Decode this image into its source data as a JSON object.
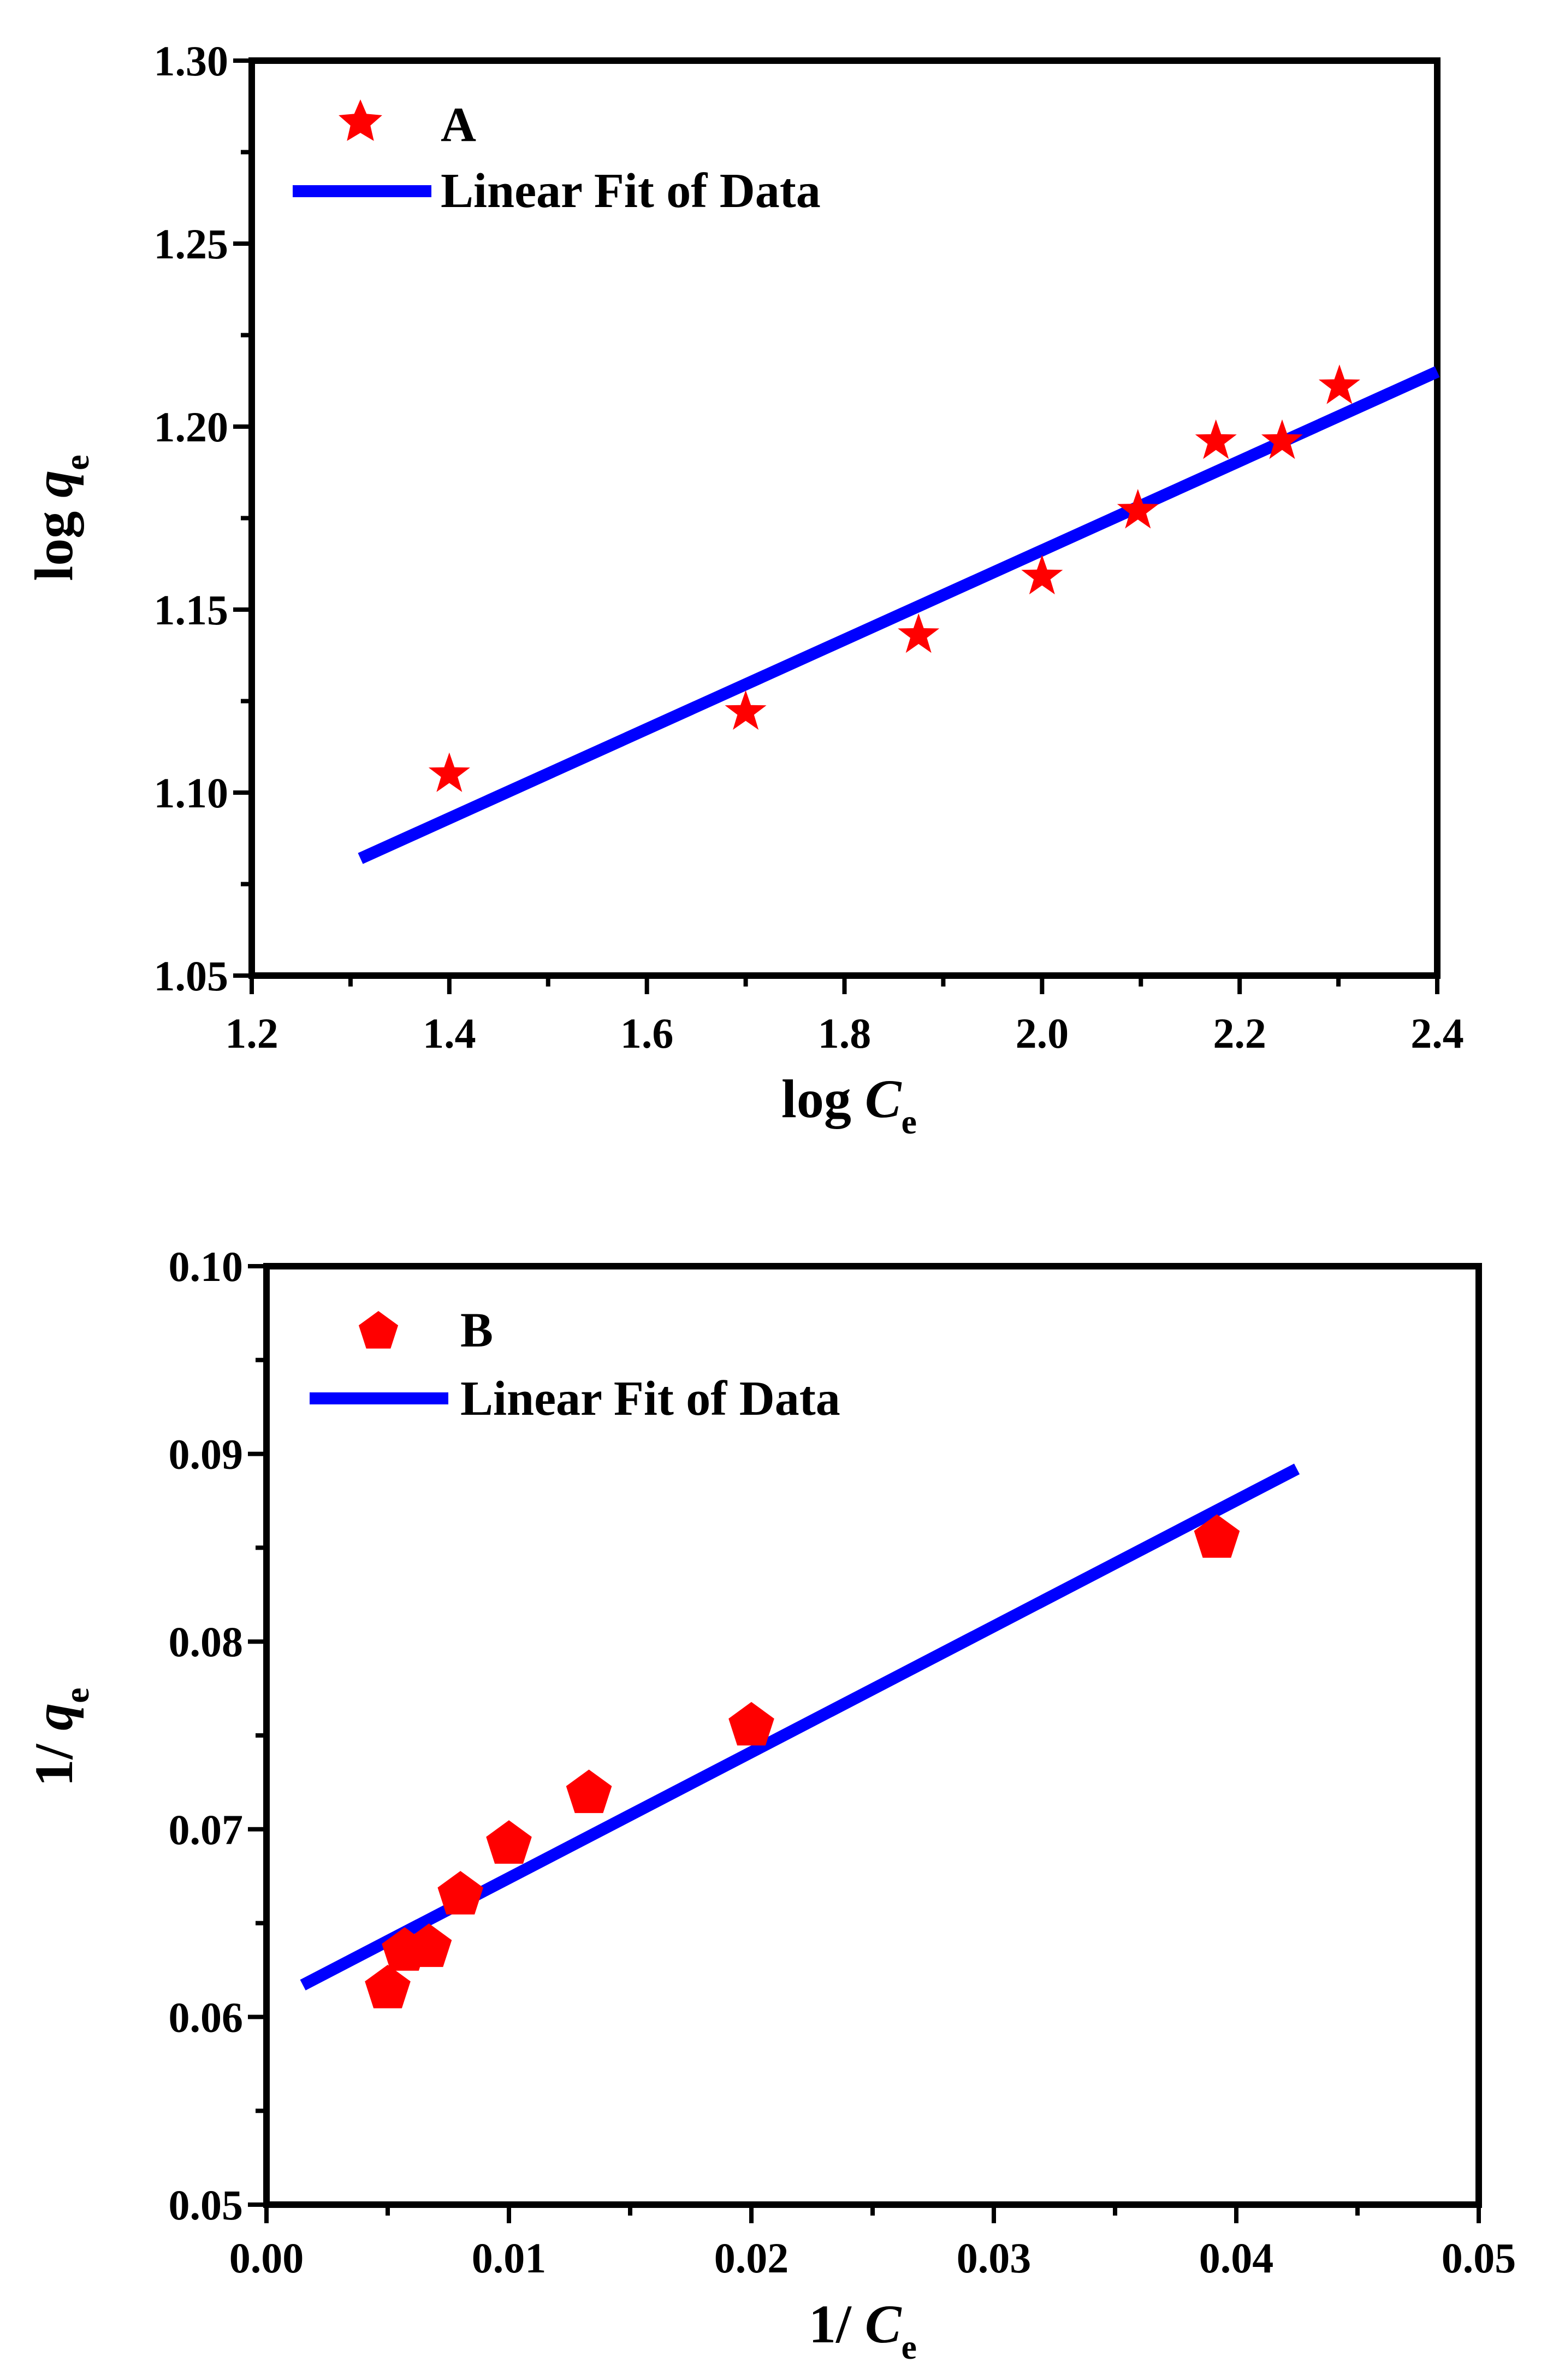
{
  "chart_data": [
    {
      "type": "scatter",
      "panel": "A",
      "xlabel": "log C",
      "xlabel_var": "C",
      "xlabel_prefix": "log ",
      "xlabel_sub": "e",
      "ylabel": "log q",
      "ylabel_var": "q",
      "ylabel_prefix": "log ",
      "ylabel_sub": "e",
      "xlim": [
        1.2,
        2.4
      ],
      "ylim": [
        1.05,
        1.3
      ],
      "xticks": [
        1.2,
        1.4,
        1.6,
        1.8,
        2.0,
        2.2,
        2.4
      ],
      "xtick_labels": [
        "1.2",
        "1.4",
        "1.6",
        "1.8",
        "2.0",
        "2.2",
        "2.4"
      ],
      "yticks": [
        1.05,
        1.1,
        1.15,
        1.2,
        1.25,
        1.3
      ],
      "ytick_labels": [
        "1.05",
        "1.10",
        "1.15",
        "1.20",
        "1.25",
        "1.30"
      ],
      "grid": false,
      "legend_position": "top-left",
      "series": [
        {
          "name": "A",
          "kind": "scatter",
          "marker": "star",
          "color": "#ff0000",
          "x": [
            1.4,
            1.7,
            1.875,
            2.0,
            2.097,
            2.176,
            2.243,
            2.301
          ],
          "y": [
            1.105,
            1.122,
            1.143,
            1.159,
            1.177,
            1.196,
            1.196,
            1.211
          ]
        },
        {
          "name": "Linear Fit of Data",
          "kind": "line",
          "color": "#0000ff",
          "x": [
            1.31,
            2.4
          ],
          "y": [
            1.082,
            1.215
          ]
        }
      ]
    },
    {
      "type": "scatter",
      "panel": "B",
      "xlabel": "1/ C",
      "xlabel_var": "C",
      "xlabel_prefix": "1/ ",
      "xlabel_sub": "e",
      "ylabel": "1/ q",
      "ylabel_var": "q",
      "ylabel_prefix": "1/ ",
      "ylabel_sub": "e",
      "xlim": [
        0.0,
        0.05
      ],
      "ylim": [
        0.05,
        0.1
      ],
      "xticks": [
        0.0,
        0.01,
        0.02,
        0.03,
        0.04,
        0.05
      ],
      "xtick_labels": [
        "0.00",
        "0.01",
        "0.02",
        "0.03",
        "0.04",
        "0.05"
      ],
      "yticks": [
        0.05,
        0.06,
        0.07,
        0.08,
        0.09,
        0.1
      ],
      "ytick_labels": [
        "0.05",
        "0.06",
        "0.07",
        "0.08",
        "0.09",
        "0.10"
      ],
      "grid": false,
      "legend_position": "top-left",
      "series": [
        {
          "name": "B",
          "kind": "scatter",
          "marker": "pentagon",
          "color": "#ff0000",
          "x": [
            0.005,
            0.0057,
            0.0067,
            0.008,
            0.01,
            0.0133,
            0.02,
            0.0392
          ],
          "y": [
            0.0615,
            0.0635,
            0.0637,
            0.0665,
            0.0692,
            0.0719,
            0.0755,
            0.0855
          ]
        },
        {
          "name": "Linear Fit of Data",
          "kind": "line",
          "color": "#0000ff",
          "x": [
            0.0015,
            0.0425
          ],
          "y": [
            0.0617,
            0.0892
          ]
        }
      ]
    }
  ]
}
